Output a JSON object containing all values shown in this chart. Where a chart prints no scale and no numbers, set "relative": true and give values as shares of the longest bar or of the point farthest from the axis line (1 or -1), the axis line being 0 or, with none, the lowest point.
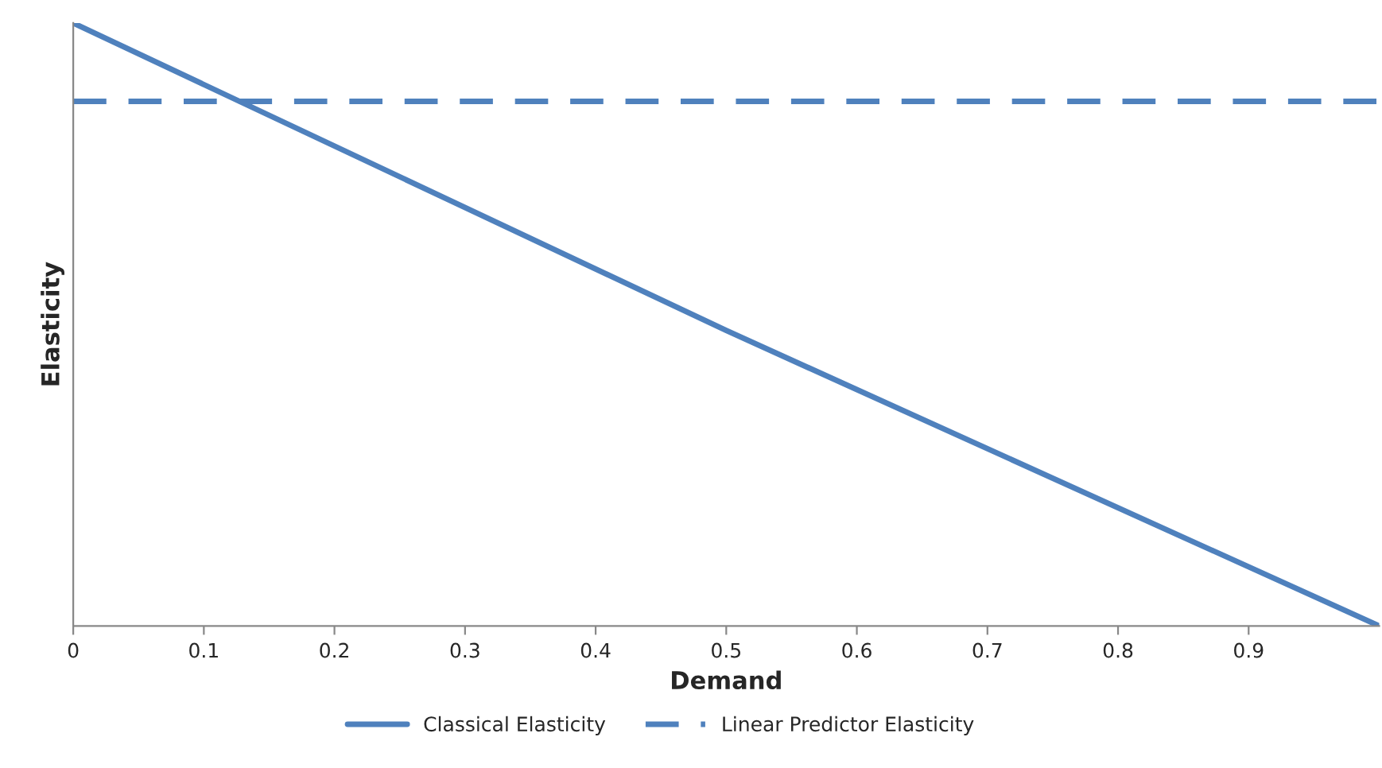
{
  "chart_data": {
    "type": "line",
    "xlabel": "Demand",
    "ylabel": "Elasticity",
    "relative": true,
    "xlim": [
      0,
      1
    ],
    "xticks": [
      0,
      0.1,
      0.2,
      0.3,
      0.4,
      0.5,
      0.6,
      0.7,
      0.8,
      0.9
    ],
    "tick_labels": "x",
    "grid": false,
    "legend": "bottom",
    "series": [
      {
        "name": "Classical Elasticity",
        "color": "#4f81bd",
        "x": [
          0,
          0.5,
          1
        ],
        "values": [
          1,
          0.49,
          0
        ],
        "line_style": "solid"
      },
      {
        "name": "Linear Predictor Elasticity",
        "color": "#4f81bd",
        "x": [
          0,
          1
        ],
        "values": [
          0.87,
          0.87
        ],
        "line_style": "dashed"
      }
    ]
  }
}
